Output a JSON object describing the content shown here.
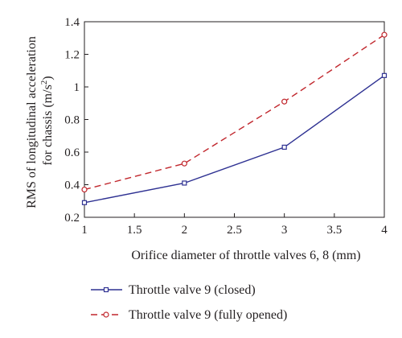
{
  "chart_data": {
    "type": "line",
    "xlabel": "Orifice diameter of throttle valves 6, 8 (mm)",
    "ylabel_line1": "RMS of longitudinal acceleration",
    "ylabel_line2_prefix": "for chassis (m/s",
    "ylabel_line2_sup": "2",
    "ylabel_line2_suffix": ")",
    "xlim": [
      1,
      4
    ],
    "ylim": [
      0.2,
      1.4
    ],
    "xticks": [
      "1",
      "1.5",
      "2",
      "2.5",
      "3",
      "3.5",
      "4"
    ],
    "yticks": [
      "0.2",
      "0.4",
      "0.6",
      "0.8",
      "1",
      "1.2",
      "1.4"
    ],
    "x": [
      1,
      2,
      3,
      4
    ],
    "series": [
      {
        "name": "Throttle valve 9 (closed)",
        "values": [
          0.29,
          0.41,
          0.63,
          1.07
        ],
        "color": "#2e3192",
        "dash": "solid",
        "marker": "square"
      },
      {
        "name": "Throttle valve 9 (fully opened)",
        "values": [
          0.37,
          0.53,
          0.91,
          1.32
        ],
        "color": "#c1272d",
        "dash": "dashed",
        "marker": "circle"
      }
    ],
    "grid": false,
    "legend_position": "bottom"
  }
}
